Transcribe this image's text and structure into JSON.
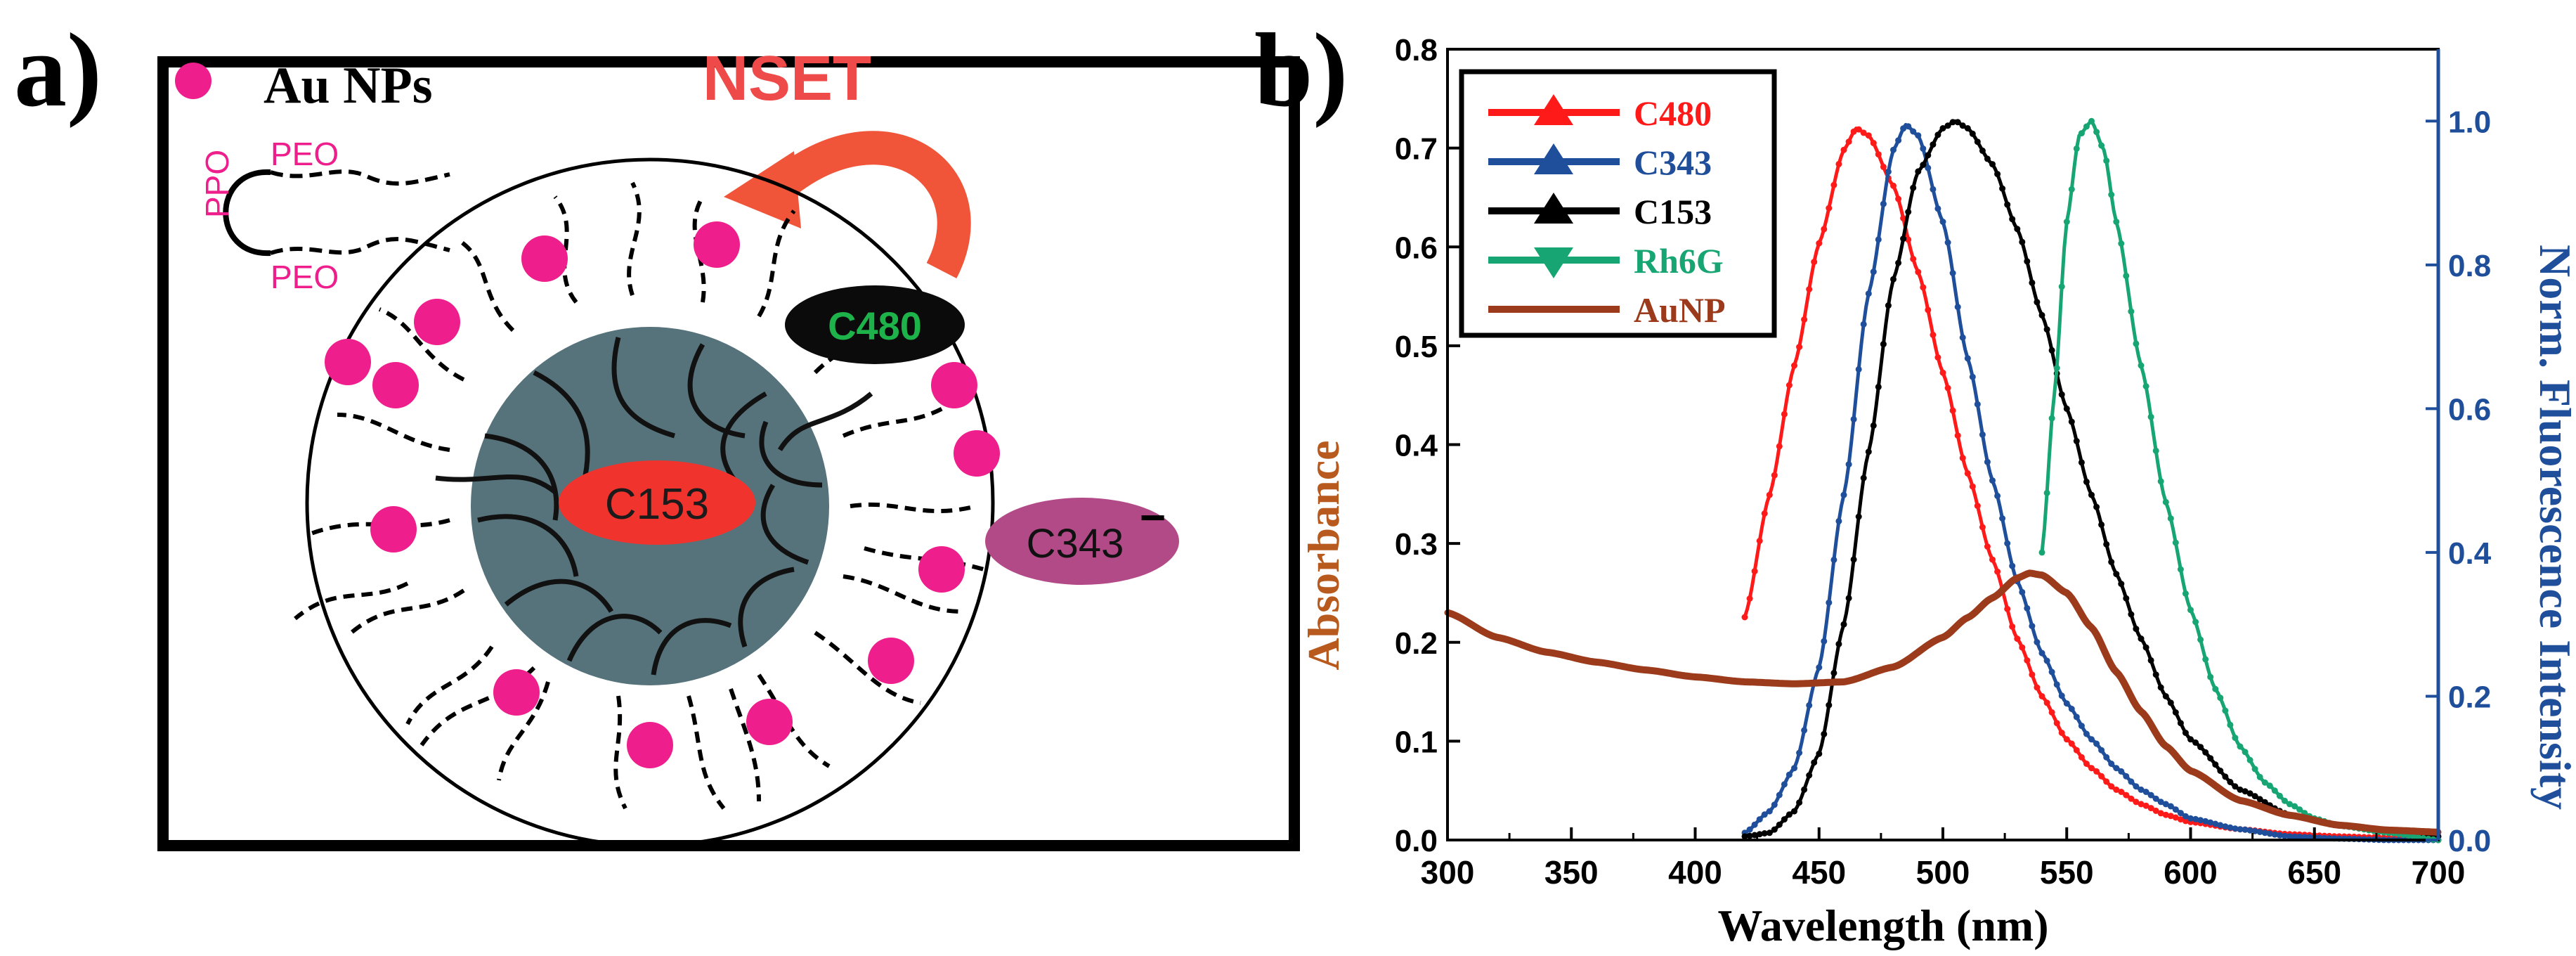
{
  "panel_a": {
    "label": "a)",
    "legend_au": "Au NPs",
    "nset": "NSET",
    "ppo": "PPO",
    "peo_top": "PEO",
    "peo_bottom": "PEO",
    "dye_c480": "C480",
    "dye_c153": "C153",
    "dye_c343": "C343",
    "dye_c343_charge": "−",
    "colors": {
      "au_np": "#ee1f8c",
      "core": "#56727a",
      "nset_arrow": "#f0553a",
      "c480_fill": "#0b0b0b",
      "c480_text": "#1db34a",
      "c153_fill": "#f0332d",
      "c343_fill": "#b34a88"
    }
  },
  "panel_b": {
    "label": "b)"
  },
  "chart_data": {
    "type": "line",
    "xlabel": "Wavelength (nm)",
    "ylabel_left": "Absorbance",
    "ylabel_right": "Norm. Fluorescence Intensity",
    "xlim": [
      300,
      700
    ],
    "ylim_left": [
      0.0,
      0.8
    ],
    "ylim_right": [
      0.0,
      1.1
    ],
    "x_ticks": [
      300,
      350,
      400,
      450,
      500,
      550,
      600,
      650,
      700
    ],
    "x_tick_labels": [
      "300",
      "350",
      "400",
      "450",
      "500",
      "550",
      "600",
      "650",
      "700"
    ],
    "y_left_ticks": [
      0.0,
      0.1,
      0.2,
      0.3,
      0.4,
      0.5,
      0.6,
      0.7,
      0.8
    ],
    "y_left_tick_labels": [
      "0.0",
      "0.1",
      "0.2",
      "0.3",
      "0.4",
      "0.5",
      "0.6",
      "0.7",
      "0.8"
    ],
    "y_right_ticks": [
      0.0,
      0.2,
      0.4,
      0.6,
      0.8,
      1.0
    ],
    "y_right_tick_labels": [
      "0.0",
      "0.2",
      "0.4",
      "0.6",
      "0.8",
      "1.0"
    ],
    "grid": false,
    "legend_position": "top-left",
    "legend": [
      {
        "name": "C480",
        "color": "#ff1a1a",
        "marker": "triangle-up"
      },
      {
        "name": "C343",
        "color": "#1f4e9a",
        "marker": "triangle-up"
      },
      {
        "name": "C153",
        "color": "#000000",
        "marker": "triangle-up"
      },
      {
        "name": "Rh6G",
        "color": "#17a673",
        "marker": "triangle-down"
      },
      {
        "name": "AuNP",
        "color": "#9c3a1c",
        "marker": "none"
      }
    ],
    "series": [
      {
        "name": "C480",
        "axis": "right",
        "color": "#ff1a1a",
        "x": [
          420,
          430,
          440,
          450,
          460,
          465,
          470,
          480,
          490,
          500,
          510,
          520,
          530,
          540,
          550,
          560,
          570,
          580,
          590,
          600,
          620,
          640,
          660,
          680,
          700
        ],
        "y": [
          0.31,
          0.48,
          0.66,
          0.83,
          0.96,
          0.99,
          0.98,
          0.91,
          0.79,
          0.65,
          0.51,
          0.39,
          0.28,
          0.2,
          0.14,
          0.1,
          0.07,
          0.05,
          0.035,
          0.025,
          0.015,
          0.008,
          0.005,
          0.003,
          0.0
        ]
      },
      {
        "name": "C343",
        "axis": "right",
        "color": "#1f4e9a",
        "x": [
          420,
          430,
          440,
          450,
          460,
          470,
          480,
          485,
          490,
          500,
          510,
          520,
          530,
          540,
          550,
          560,
          570,
          580,
          590,
          600,
          620,
          640,
          660,
          680,
          700
        ],
        "y": [
          0.01,
          0.04,
          0.1,
          0.24,
          0.48,
          0.76,
          0.96,
          0.995,
          0.98,
          0.86,
          0.67,
          0.5,
          0.36,
          0.26,
          0.19,
          0.14,
          0.1,
          0.07,
          0.05,
          0.03,
          0.015,
          0.005,
          0.002,
          0.0,
          0.0
        ]
      },
      {
        "name": "C153",
        "axis": "right",
        "color": "#000000",
        "x": [
          420,
          430,
          440,
          450,
          460,
          470,
          480,
          490,
          500,
          505,
          510,
          520,
          530,
          540,
          550,
          560,
          570,
          580,
          590,
          600,
          620,
          640,
          660,
          680,
          700
        ],
        "y": [
          0.005,
          0.01,
          0.04,
          0.12,
          0.3,
          0.54,
          0.78,
          0.93,
          0.99,
          1.0,
          0.99,
          0.94,
          0.85,
          0.73,
          0.6,
          0.48,
          0.37,
          0.28,
          0.2,
          0.14,
          0.07,
          0.035,
          0.02,
          0.01,
          0.005
        ]
      },
      {
        "name": "Rh6G",
        "axis": "right",
        "color": "#17a673",
        "x": [
          540,
          545,
          550,
          555,
          560,
          565,
          570,
          580,
          590,
          600,
          610,
          620,
          630,
          640,
          650,
          660,
          680,
          700
        ],
        "y": [
          0.4,
          0.62,
          0.86,
          0.98,
          1.0,
          0.96,
          0.86,
          0.66,
          0.47,
          0.32,
          0.21,
          0.13,
          0.08,
          0.05,
          0.03,
          0.02,
          0.01,
          0.0
        ]
      },
      {
        "name": "AuNP",
        "axis": "left",
        "color": "#9c3a1c",
        "x": [
          300,
          320,
          340,
          360,
          380,
          400,
          420,
          440,
          460,
          480,
          500,
          510,
          520,
          530,
          535,
          540,
          550,
          560,
          570,
          580,
          590,
          600,
          620,
          640,
          660,
          680,
          700
        ],
        "y": [
          0.23,
          0.205,
          0.19,
          0.18,
          0.172,
          0.165,
          0.16,
          0.158,
          0.16,
          0.175,
          0.205,
          0.225,
          0.245,
          0.265,
          0.27,
          0.268,
          0.25,
          0.215,
          0.17,
          0.13,
          0.095,
          0.07,
          0.04,
          0.025,
          0.015,
          0.01,
          0.008
        ]
      }
    ]
  }
}
